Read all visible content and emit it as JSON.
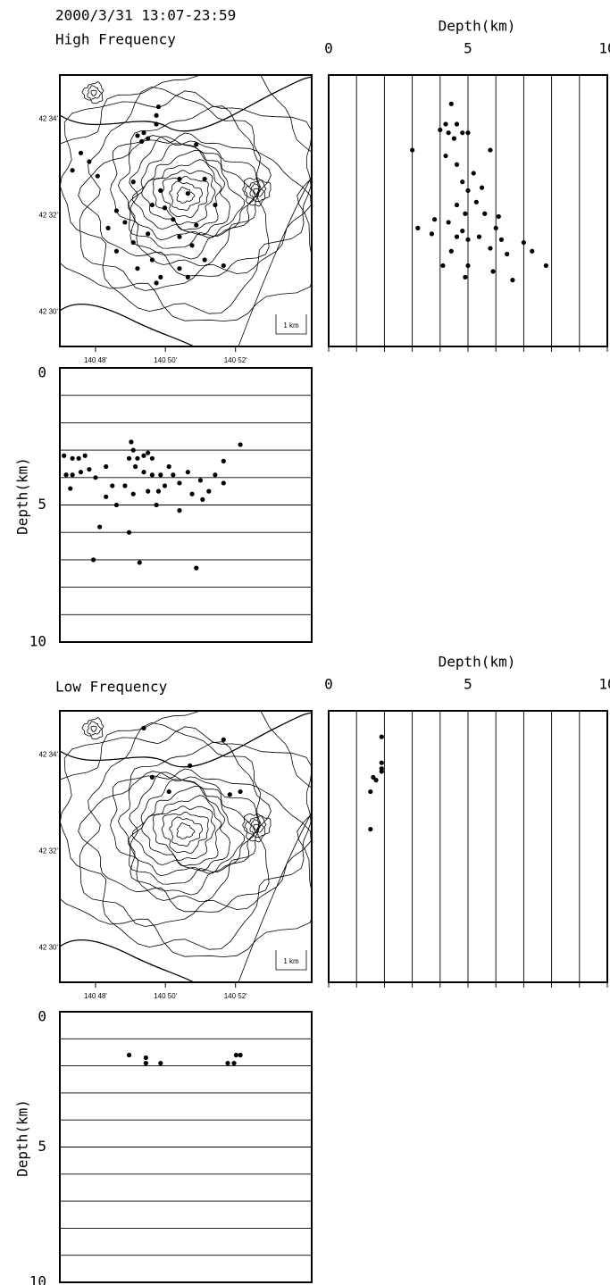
{
  "header": {
    "date": "2000/3/31 13:07-23:59"
  },
  "chart_data": [
    {
      "type": "scatter",
      "title": "High Frequency",
      "basemap": "contour",
      "scale_label": "1 km",
      "color": "#000000",
      "x": [
        140.82,
        140.823,
        140.825,
        140.822,
        140.829,
        140.83,
        140.829,
        140.793,
        140.789,
        140.797,
        140.801,
        140.81,
        140.818,
        140.831,
        140.84,
        140.844,
        140.852,
        140.848,
        140.827,
        140.833,
        140.857,
        140.837,
        140.814,
        140.825,
        140.84,
        140.848,
        140.818,
        140.81,
        140.846,
        140.827,
        140.852,
        140.861,
        140.84,
        140.82,
        140.831,
        140.844,
        140.829,
        140.806
      ],
      "values": [
        42.561,
        42.562,
        42.56,
        42.559,
        42.568,
        42.571,
        42.565,
        42.555,
        42.549,
        42.552,
        42.547,
        42.535,
        42.545,
        42.542,
        42.546,
        42.541,
        42.546,
        42.558,
        42.537,
        42.536,
        42.537,
        42.532,
        42.531,
        42.527,
        42.526,
        42.53,
        42.524,
        42.521,
        42.523,
        42.518,
        42.518,
        42.516,
        42.515,
        42.515,
        42.512,
        42.512,
        42.51,
        42.529
      ],
      "xlim": [
        140.783,
        140.903
      ],
      "ylim": [
        42.488,
        42.582
      ],
      "xticks": [
        {
          "value": 140.8,
          "label": "140 48'"
        },
        {
          "value": 140.8333,
          "label": "140 50'"
        },
        {
          "value": 140.8667,
          "label": "140 52'"
        }
      ],
      "yticks": [
        {
          "value": 42.5667,
          "label": "42 34'"
        },
        {
          "value": 42.5333,
          "label": "42 32'"
        },
        {
          "value": 42.5,
          "label": "42 30'"
        }
      ]
    },
    {
      "type": "scatter",
      "xlabel": "Depth(km)",
      "color": "#000000",
      "grid": "x",
      "x": [
        4.4,
        4.2,
        4.6,
        4.0,
        4.3,
        4.8,
        4.5,
        5.0,
        3.0,
        4.2,
        5.8,
        4.6,
        5.2,
        4.8,
        5.5,
        5.0,
        4.6,
        5.3,
        4.9,
        3.8,
        5.6,
        6.1,
        3.2,
        4.3,
        4.8,
        3.7,
        6.0,
        4.6,
        5.0,
        5.4,
        6.2,
        5.8,
        7.0,
        6.4,
        7.3,
        7.8,
        5.0,
        4.1,
        5.9,
        4.9,
        6.6,
        4.4
      ],
      "values": [
        42.572,
        42.565,
        42.565,
        42.563,
        42.562,
        42.562,
        42.56,
        42.562,
        42.556,
        42.554,
        42.556,
        42.551,
        42.548,
        42.545,
        42.543,
        42.542,
        42.537,
        42.538,
        42.534,
        42.532,
        42.534,
        42.533,
        42.529,
        42.531,
        42.528,
        42.527,
        42.529,
        42.526,
        42.525,
        42.526,
        42.525,
        42.522,
        42.524,
        42.52,
        42.521,
        42.516,
        42.516,
        42.516,
        42.514,
        42.512,
        42.511,
        42.521
      ],
      "xlim": [
        0,
        10
      ],
      "ylim": [
        42.488,
        42.582
      ],
      "xticks": [
        0,
        5,
        10
      ],
      "grid_lines": [
        1,
        2,
        3,
        4,
        6,
        7,
        8,
        9
      ]
    },
    {
      "type": "scatter",
      "ylabel": "Depth(km)",
      "color": "#000000",
      "grid": "y",
      "yreverse": true,
      "x": [
        140.785,
        140.789,
        140.792,
        140.795,
        140.786,
        140.789,
        140.793,
        140.788,
        140.797,
        140.8,
        140.805,
        140.808,
        140.816,
        140.818,
        140.82,
        140.823,
        140.825,
        140.827,
        140.819,
        140.823,
        140.827,
        140.831,
        140.835,
        140.837,
        140.833,
        140.825,
        140.818,
        140.814,
        140.81,
        140.83,
        140.84,
        140.844,
        140.846,
        140.85,
        140.854,
        140.857,
        140.861,
        140.869,
        140.851,
        140.861,
        140.817,
        140.799,
        140.802,
        140.821,
        140.829,
        140.84,
        140.848,
        140.816,
        140.805
      ],
      "values": [
        3.2,
        3.3,
        3.3,
        3.2,
        3.9,
        3.9,
        3.8,
        4.4,
        3.7,
        4.0,
        3.6,
        4.3,
        3.3,
        3.0,
        3.3,
        3.2,
        3.1,
        3.3,
        3.6,
        3.8,
        3.9,
        3.9,
        3.6,
        3.9,
        4.3,
        4.5,
        4.6,
        4.3,
        5.0,
        4.5,
        4.2,
        3.8,
        4.6,
        4.1,
        4.5,
        3.9,
        3.4,
        2.8,
        4.8,
        4.2,
        2.7,
        7.0,
        5.8,
        7.1,
        5.0,
        5.2,
        7.3,
        6.0,
        4.7
      ],
      "xlim": [
        140.783,
        140.903
      ],
      "ylim": [
        0,
        10
      ],
      "yticks": [
        0,
        5,
        10
      ],
      "grid_lines": [
        1,
        2,
        3,
        4,
        6,
        7,
        8,
        9
      ]
    },
    {
      "type": "scatter",
      "title": "Low Frequency",
      "basemap": "contour",
      "scale_label": "1 km",
      "color": "#000000",
      "x": [
        140.823,
        140.861,
        140.845,
        140.827,
        140.835,
        140.864,
        140.869
      ],
      "values": [
        42.576,
        42.572,
        42.563,
        42.559,
        42.554,
        42.553,
        42.554
      ],
      "xlim": [
        140.783,
        140.903
      ],
      "ylim": [
        42.488,
        42.582
      ],
      "xticks": [
        {
          "value": 140.8,
          "label": "140 48'"
        },
        {
          "value": 140.8333,
          "label": "140 50'"
        },
        {
          "value": 140.8667,
          "label": "140 52'"
        }
      ],
      "yticks": [
        {
          "value": 42.5667,
          "label": "42 34'"
        },
        {
          "value": 42.5333,
          "label": "42 32'"
        },
        {
          "value": 42.5,
          "label": "42 30'"
        }
      ]
    },
    {
      "type": "scatter",
      "xlabel": "Depth(km)",
      "color": "#000000",
      "grid": "x",
      "x": [
        1.9,
        1.9,
        1.6,
        1.5,
        1.7,
        1.9,
        1.9,
        1.5
      ],
      "values": [
        42.573,
        42.564,
        42.559,
        42.554,
        42.558,
        42.562,
        42.561,
        42.541
      ],
      "xlim": [
        0,
        10
      ],
      "ylim": [
        42.488,
        42.582
      ],
      "xticks": [
        0,
        5,
        10
      ],
      "grid_lines": [
        1,
        2,
        3,
        4,
        6,
        7,
        8,
        9
      ]
    },
    {
      "type": "scatter",
      "ylabel": "Depth(km)",
      "color": "#000000",
      "grid": "y",
      "yreverse": true,
      "x": [
        140.816,
        140.824,
        140.824,
        140.831,
        140.863,
        140.866,
        140.867,
        140.869
      ],
      "values": [
        1.6,
        1.7,
        1.9,
        1.9,
        1.9,
        1.9,
        1.6,
        1.6
      ],
      "xlim": [
        140.783,
        140.903
      ],
      "ylim": [
        0,
        10
      ],
      "yticks": [
        0,
        5,
        10
      ],
      "grid_lines": [
        1,
        2,
        3,
        4,
        6,
        7,
        8,
        9
      ]
    }
  ]
}
